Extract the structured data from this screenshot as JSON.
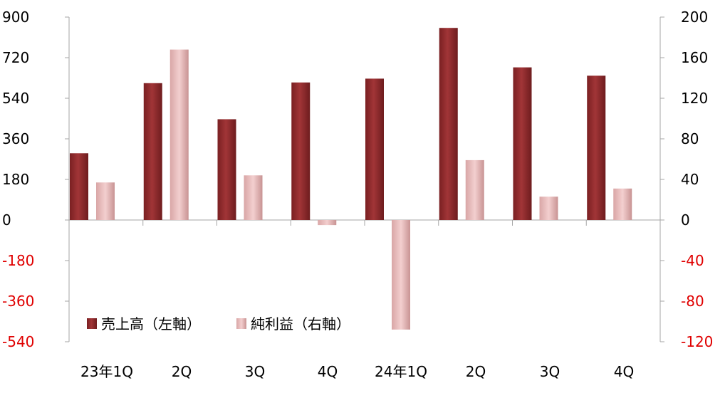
{
  "chart_data": {
    "type": "bar",
    "categories": [
      "23年1Q",
      "2Q",
      "3Q",
      "4Q",
      "24年1Q",
      "2Q",
      "3Q",
      "4Q"
    ],
    "series": [
      {
        "name": "売上高（左軸）",
        "axis": "left",
        "values": [
          296,
          607,
          447,
          610,
          627,
          852,
          677,
          640
        ]
      },
      {
        "name": "純利益（右軸）",
        "axis": "right",
        "values": [
          37,
          168,
          44,
          -5,
          -108,
          59,
          23,
          31
        ]
      }
    ],
    "y_left": {
      "min": -540,
      "max": 900,
      "ticks": [
        900,
        720,
        540,
        360,
        180,
        0,
        -180,
        -360,
        -540
      ]
    },
    "y_right": {
      "min": -120,
      "max": 200,
      "ticks": [
        200,
        160,
        120,
        80,
        40,
        0,
        -40,
        -80,
        -120
      ]
    },
    "negative_tick_color": "#e00000",
    "positive_tick_color": "#000000",
    "bar_colors": [
      "#8c2a2c",
      "#e8bcbc"
    ],
    "legend_position": "bottom-left",
    "grid": false
  }
}
